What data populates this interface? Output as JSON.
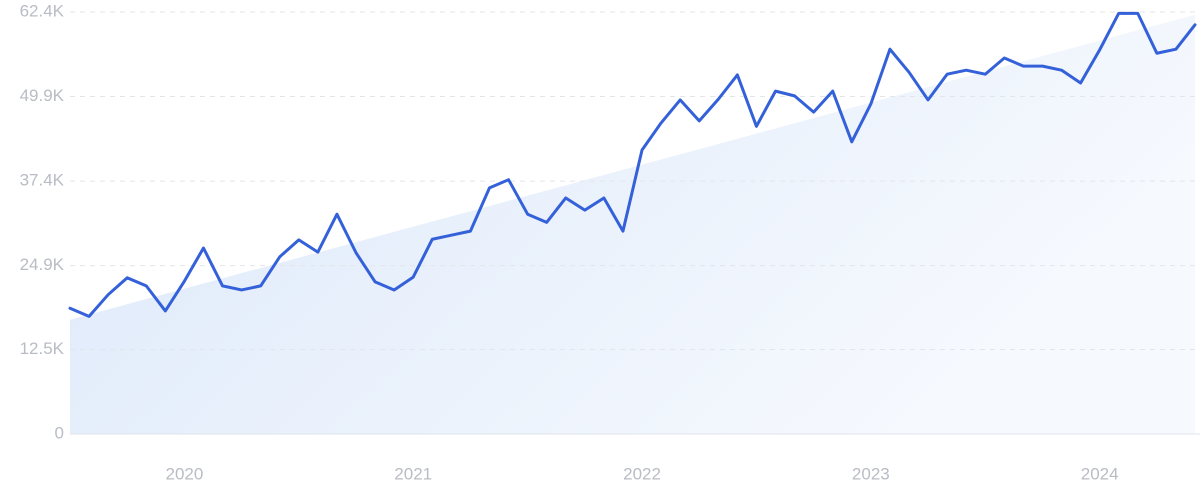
{
  "chart_data": {
    "type": "line",
    "categories": [
      null,
      null,
      null,
      null,
      null,
      null,
      "2020",
      null,
      null,
      null,
      null,
      null,
      null,
      null,
      null,
      null,
      null,
      null,
      "2021",
      null,
      null,
      null,
      null,
      null,
      null,
      null,
      null,
      null,
      null,
      null,
      "2022",
      null,
      null,
      null,
      null,
      null,
      null,
      null,
      null,
      null,
      null,
      null,
      "2023",
      null,
      null,
      null,
      null,
      null,
      null,
      null,
      null,
      null,
      null,
      null,
      "2024",
      null,
      null,
      null,
      null,
      null
    ],
    "values": [
      18600,
      17400,
      20600,
      23100,
      21900,
      18200,
      22600,
      27500,
      21900,
      21300,
      21900,
      26200,
      28700,
      26900,
      32500,
      26800,
      22500,
      21300,
      23200,
      28800,
      29400,
      30000,
      36400,
      37600,
      32500,
      31300,
      34900,
      33100,
      34900,
      30000,
      42000,
      46000,
      49400,
      46300,
      49500,
      53100,
      45500,
      50700,
      50000,
      47600,
      50700,
      43200,
      48800,
      56900,
      53500,
      49400,
      53200,
      53800,
      53200,
      55600,
      54400,
      54400,
      53800,
      51900,
      56800,
      62200,
      62200,
      56300,
      56900,
      60500
    ],
    "color": "#3461d9",
    "trend": {
      "values": [
        16900,
        62000
      ],
      "color": "#dce8fa"
    },
    "ylim": [
      0,
      62400
    ],
    "yticks": [
      0,
      {
        "value": 12500,
        "label": "12.5K"
      },
      {
        "value": 24900,
        "label": "24.9K"
      },
      {
        "value": 37400,
        "label": "37.4K"
      },
      {
        "value": 49900,
        "label": "49.9K"
      },
      {
        "value": 62400,
        "label": "62.4K"
      }
    ],
    "grid": true
  }
}
